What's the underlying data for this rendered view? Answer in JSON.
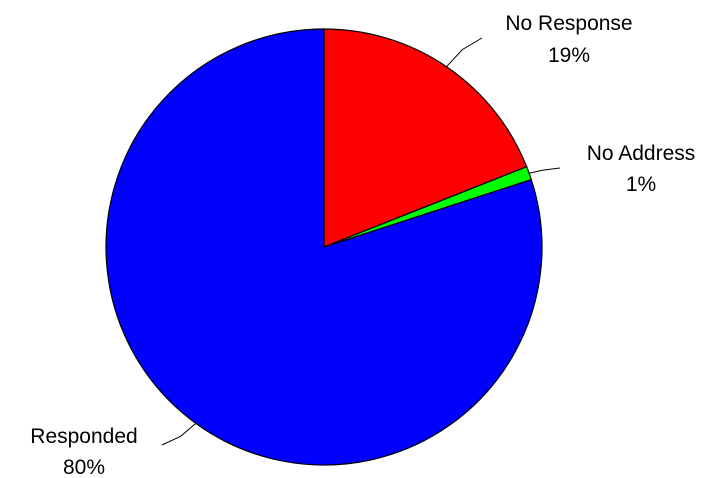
{
  "chart_data": {
    "type": "pie",
    "title": "",
    "slices": [
      {
        "label": "No Response",
        "value": 19,
        "value_label": "19%",
        "color": "#ff0000"
      },
      {
        "label": "No Address",
        "value": 1,
        "value_label": "1%",
        "color": "#00ff00"
      },
      {
        "label": "Responded",
        "value": 80,
        "value_label": "80%",
        "color": "#0000ff"
      }
    ],
    "start": "12 o'clock",
    "direction": "clockwise",
    "outline_color": "#000000",
    "legend": "none",
    "labels": "outside with leader lines"
  }
}
